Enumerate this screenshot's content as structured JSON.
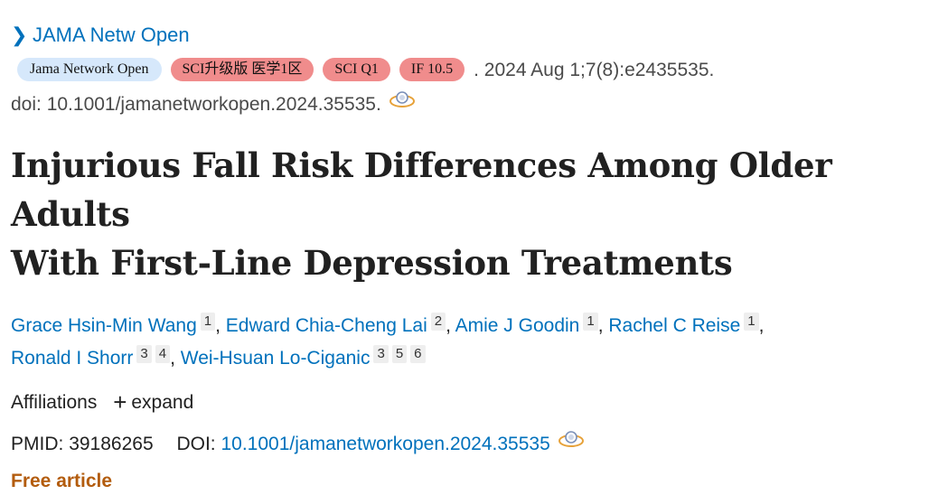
{
  "journal": {
    "link": "JAMA Netw Open"
  },
  "badges": {
    "journal_name": "Jama Network Open",
    "sci_upgrade": "SCI升级版 医学1区",
    "sci_q": "SCI Q1",
    "impact_factor": "IF 10.5"
  },
  "citation": {
    "date_volume": ". 2024 Aug 1;7(8):e2435535.",
    "doi_text": "doi: 10.1001/jamanetworkopen.2024.35535."
  },
  "title": {
    "line1": "Injurious Fall Risk Differences Among Older Adults",
    "line2": "With First-Line Depression Treatments"
  },
  "authors": [
    {
      "name": "Grace Hsin-Min Wang",
      "affils": [
        "1"
      ]
    },
    {
      "name": "Edward Chia-Cheng Lai",
      "affils": [
        "2"
      ]
    },
    {
      "name": "Amie J Goodin",
      "affils": [
        "1"
      ]
    },
    {
      "name": "Rachel C Reise",
      "affils": [
        "1"
      ]
    },
    {
      "name": "Ronald I Shorr",
      "affils": [
        "3",
        "4"
      ]
    },
    {
      "name": "Wei-Hsuan Lo-Ciganic",
      "affils": [
        "3",
        "5",
        "6"
      ]
    }
  ],
  "affiliations": {
    "label": "Affiliations",
    "expand_label": "expand"
  },
  "identifiers": {
    "pmid_label": "PMID:",
    "pmid": "39186265",
    "doi_label": "DOI:",
    "doi": "10.1001/jamanetworkopen.2024.35535"
  },
  "access": {
    "label": "Free article"
  }
}
